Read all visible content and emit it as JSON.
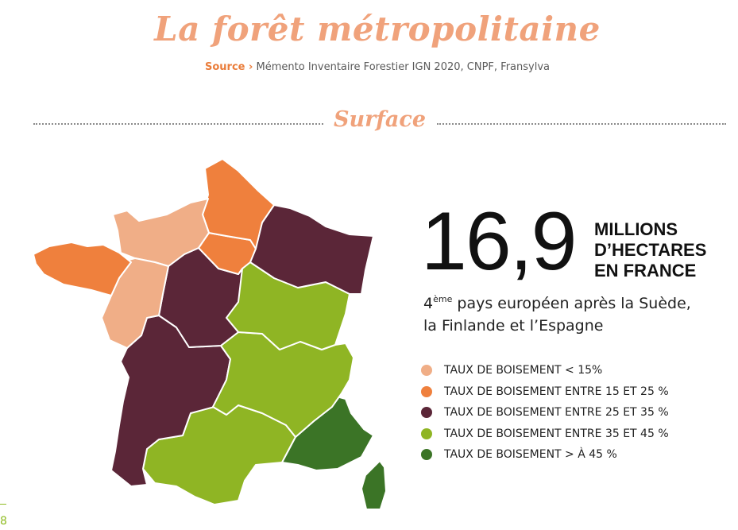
{
  "header": {
    "title": "La forêt métropolitaine",
    "source_label": "Source ›",
    "source_text": "Mémento Inventaire Forestier IGN 2020, CNPF, Fransylva"
  },
  "section": {
    "title": "Surface"
  },
  "stat": {
    "value": "16,9",
    "unit_line1": "MILLIONS",
    "unit_line2": "D’HECTARES",
    "unit_line3": "EN FRANCE",
    "rank_number": "4",
    "rank_suffix": "ème",
    "rank_line1_rest": " pays européen après la Suède,",
    "rank_line2": "la Finlande et l’Espagne"
  },
  "legend": [
    {
      "label": "TAUX DE BOISEMENT < 15%",
      "color": "#f0ae87"
    },
    {
      "label": "TAUX DE BOISEMENT ENTRE 15 ET 25 %",
      "color": "#ef803d"
    },
    {
      "label": "TAUX DE BOISEMENT ENTRE 25 ET 35 %",
      "color": "#5b2638"
    },
    {
      "label": "TAUX DE BOISEMENT ENTRE 35 ET 45 %",
      "color": "#8fb524"
    },
    {
      "label": "TAUX DE BOISEMENT > À 45 %",
      "color": "#3b7426"
    }
  ],
  "map": {
    "regions": [
      {
        "name": "hauts-de-france",
        "category": 1
      },
      {
        "name": "ile-de-france",
        "category": 1
      },
      {
        "name": "bretagne",
        "category": 1
      },
      {
        "name": "normandie",
        "category": 0
      },
      {
        "name": "pays-de-la-loire",
        "category": 0
      },
      {
        "name": "grand-est",
        "category": 2
      },
      {
        "name": "centre-val-de-loire",
        "category": 2
      },
      {
        "name": "nouvelle-aquitaine",
        "category": 2
      },
      {
        "name": "bourgogne-franche-comte",
        "category": 3
      },
      {
        "name": "auvergne-rhone-alpes",
        "category": 3
      },
      {
        "name": "occitanie",
        "category": 3
      },
      {
        "name": "provence-alpes-cote-d-azur",
        "category": 4
      },
      {
        "name": "corse",
        "category": 4
      }
    ]
  },
  "footer": {
    "page_number": "8"
  }
}
